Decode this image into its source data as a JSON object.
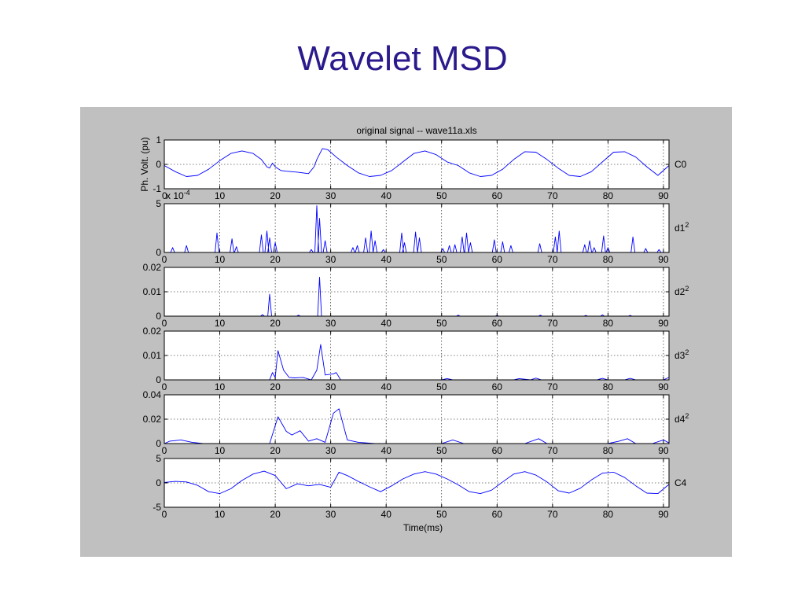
{
  "slide": {
    "title": "Wavelet MSD"
  },
  "figure": {
    "title": "original signal -- wave11a.xls",
    "xlabel": "Time(ms)",
    "ylabel_top": "Ph. Volt. (pu)",
    "exponent_label": "x 10",
    "exponent_power": "-4"
  },
  "colors": {
    "panel_bg": "#c0c0c0",
    "axes_bg": "#ffffff",
    "signal": "#0000ff",
    "title": "#2a1a8c"
  },
  "chart_data": [
    {
      "type": "line",
      "name": "C0",
      "label": "C0",
      "sup": "",
      "xlim": [
        0,
        91
      ],
      "ylim": [
        -1,
        1
      ],
      "yticks": [
        -1,
        0,
        1
      ],
      "ytick_labels": [
        "-1",
        "0",
        "1"
      ],
      "xticks": [
        0,
        10,
        20,
        30,
        40,
        50,
        60,
        70,
        80,
        90
      ],
      "grid": true,
      "x": [
        0,
        2,
        4,
        6,
        8,
        10,
        12,
        14,
        16,
        17.5,
        18.5,
        19,
        19.5,
        20,
        21,
        22,
        24,
        26,
        27,
        27.5,
        28.5,
        29.5,
        31,
        33,
        35,
        37,
        39,
        41,
        43,
        45,
        47,
        49,
        51,
        53,
        55,
        57,
        59,
        61,
        63,
        65,
        67,
        69,
        71,
        73,
        75,
        77,
        79,
        81,
        83,
        85,
        87,
        89,
        91
      ],
      "y": [
        -0.05,
        -0.3,
        -0.5,
        -0.45,
        -0.2,
        0.15,
        0.45,
        0.55,
        0.45,
        0.2,
        -0.1,
        -0.15,
        0.05,
        -0.1,
        -0.25,
        -0.28,
        -0.32,
        -0.38,
        -0.1,
        0.2,
        0.65,
        0.6,
        0.3,
        -0.05,
        -0.35,
        -0.5,
        -0.45,
        -0.25,
        0.1,
        0.45,
        0.55,
        0.4,
        0.1,
        -0.05,
        -0.35,
        -0.5,
        -0.45,
        -0.2,
        0.2,
        0.52,
        0.5,
        0.2,
        -0.15,
        -0.45,
        -0.5,
        -0.3,
        0.1,
        0.5,
        0.52,
        0.3,
        -0.1,
        -0.45,
        -0.05
      ]
    },
    {
      "type": "line",
      "name": "d1",
      "label": "d1",
      "sup": "2",
      "xlim": [
        0,
        91
      ],
      "ylim": [
        0,
        5
      ],
      "yticks": [
        0,
        5
      ],
      "ytick_labels": [
        "0",
        "5"
      ],
      "xticks": [
        0,
        10,
        20,
        30,
        40,
        50,
        60,
        70,
        80,
        90
      ],
      "grid": true,
      "spikes": [
        [
          1.5,
          0.5
        ],
        [
          4,
          0.7
        ],
        [
          9.5,
          2
        ],
        [
          12.2,
          1.4
        ],
        [
          13,
          0.6
        ],
        [
          17.5,
          1.8
        ],
        [
          18.5,
          2.2
        ],
        [
          19,
          1.5
        ],
        [
          20,
          1
        ],
        [
          26.5,
          0.3
        ],
        [
          27.5,
          4.8
        ],
        [
          28,
          3.5
        ],
        [
          29,
          1.2
        ],
        [
          34,
          0.5
        ],
        [
          34.8,
          0.7
        ],
        [
          36.3,
          1.5
        ],
        [
          37.3,
          2.2
        ],
        [
          38,
          1.2
        ],
        [
          39.5,
          0.3
        ],
        [
          42.8,
          2
        ],
        [
          43.3,
          1
        ],
        [
          45.3,
          2.1
        ],
        [
          46,
          1.5
        ],
        [
          50.2,
          0.4
        ],
        [
          51.4,
          0.7
        ],
        [
          52.4,
          0.8
        ],
        [
          53.7,
          1.6
        ],
        [
          54.5,
          2
        ],
        [
          55.2,
          1
        ],
        [
          59.5,
          1.3
        ],
        [
          61,
          1.1
        ],
        [
          62.5,
          0.7
        ],
        [
          67.7,
          0.9
        ],
        [
          70.5,
          1.6
        ],
        [
          71.2,
          2.2
        ],
        [
          75.8,
          0.8
        ],
        [
          76.7,
          1.2
        ],
        [
          77.5,
          0.5
        ],
        [
          79.2,
          1.7
        ],
        [
          80,
          0.5
        ],
        [
          84.5,
          1.6
        ],
        [
          86.8,
          0.4
        ],
        [
          89.2,
          0.3
        ]
      ]
    },
    {
      "type": "line",
      "name": "d2",
      "label": "d2",
      "sup": "2",
      "xlim": [
        0,
        91
      ],
      "ylim": [
        0,
        0.02
      ],
      "yticks": [
        0,
        0.01,
        0.02
      ],
      "ytick_labels": [
        "0",
        "0.01",
        "0.02"
      ],
      "xticks": [
        0,
        10,
        20,
        30,
        40,
        50,
        60,
        70,
        80,
        90
      ],
      "grid": true,
      "spikes": [
        [
          19,
          0.009
        ],
        [
          28,
          0.016
        ],
        [
          17.7,
          0.0006
        ],
        [
          24.2,
          0.0004
        ],
        [
          53,
          0.0004
        ],
        [
          60,
          0.0003
        ],
        [
          67.8,
          0.0004
        ],
        [
          76,
          0.0003
        ],
        [
          79,
          0.0005
        ],
        [
          84,
          0.0003
        ]
      ]
    },
    {
      "type": "line",
      "name": "d3",
      "label": "d3",
      "sup": "2",
      "xlim": [
        0,
        91
      ],
      "ylim": [
        0,
        0.02
      ],
      "yticks": [
        0,
        0.01,
        0.02
      ],
      "ytick_labels": [
        "0",
        "0.01",
        "0.02"
      ],
      "xticks": [
        0,
        10,
        20,
        30,
        40,
        50,
        60,
        70,
        80,
        90
      ],
      "grid": true,
      "x": [
        0,
        17,
        19,
        19.5,
        20,
        20.5,
        21.5,
        22.5,
        23.5,
        25,
        26.5,
        27.5,
        28.2,
        29,
        30.5,
        31,
        31.8,
        33,
        40,
        50,
        51,
        52,
        63,
        64,
        66,
        67,
        68,
        70,
        78,
        79,
        80,
        83,
        84,
        85,
        90,
        91
      ],
      "y": [
        0,
        0,
        0,
        0.003,
        0.001,
        0.012,
        0.004,
        0.001,
        0.0008,
        0.001,
        0,
        0.004,
        0.0145,
        0.002,
        0.0025,
        0.003,
        0,
        0,
        0,
        0,
        0.0005,
        0,
        0,
        0.0005,
        0,
        0.0007,
        0,
        0,
        0,
        0.0006,
        0,
        0,
        0.0006,
        0,
        0,
        0.001
      ]
    },
    {
      "type": "line",
      "name": "d4",
      "label": "d4",
      "sup": "2",
      "xlim": [
        0,
        91
      ],
      "ylim": [
        0,
        0.04
      ],
      "yticks": [
        0,
        0.02,
        0.04
      ],
      "ytick_labels": [
        "0",
        "0.02",
        "0.04"
      ],
      "xticks": [
        0,
        10,
        20,
        30,
        40,
        50,
        60,
        70,
        80,
        90
      ],
      "grid": true,
      "x": [
        0,
        1,
        3,
        5,
        7,
        15,
        19,
        20.5,
        22,
        23,
        24.5,
        26,
        27.5,
        29,
        30.5,
        31.5,
        33,
        35,
        38,
        45,
        50,
        52,
        54,
        60,
        65,
        67.5,
        69,
        75,
        80,
        82,
        83.5,
        85,
        88,
        90,
        91
      ],
      "y": [
        0,
        0.002,
        0.003,
        0.001,
        0,
        0,
        0,
        0.022,
        0.01,
        0.007,
        0.0105,
        0.002,
        0.004,
        0.001,
        0.025,
        0.0285,
        0.003,
        0.001,
        0,
        0,
        0,
        0.003,
        0,
        0,
        0,
        0.004,
        0,
        0,
        0,
        0.002,
        0.004,
        0,
        0,
        0.003,
        0.0005
      ]
    },
    {
      "type": "line",
      "name": "C4",
      "label": "C4",
      "sup": "",
      "xlim": [
        0,
        91
      ],
      "ylim": [
        -5,
        5
      ],
      "yticks": [
        -5,
        0,
        5
      ],
      "ytick_labels": [
        "-5",
        "0",
        "5"
      ],
      "xticks": [
        0,
        10,
        20,
        30,
        40,
        50,
        60,
        70,
        80,
        90
      ],
      "grid": true,
      "x": [
        0,
        2,
        4,
        6,
        8,
        10,
        12,
        14,
        16,
        18,
        20,
        22,
        24,
        26,
        28,
        30,
        31.5,
        33,
        35,
        37,
        39,
        41,
        43,
        45,
        47,
        49,
        51,
        53,
        55,
        57,
        59,
        61,
        63,
        65,
        67,
        69,
        71,
        73,
        75,
        77,
        79,
        81,
        83,
        85,
        87,
        89,
        91
      ],
      "y": [
        0.1,
        0.3,
        0.2,
        -0.5,
        -1.8,
        -2.2,
        -1.2,
        0.5,
        1.8,
        2.4,
        1.5,
        -1.2,
        -0.2,
        -0.6,
        -0.3,
        -0.9,
        2.2,
        1.5,
        0.3,
        -0.8,
        -1.8,
        -0.6,
        0.8,
        1.8,
        2.3,
        1.8,
        0.8,
        -0.4,
        -1.8,
        -2.2,
        -1.5,
        0.2,
        1.8,
        2.3,
        1.6,
        0.2,
        -1.6,
        -2.1,
        -1.1,
        0.6,
        2,
        2.2,
        1.1,
        -0.6,
        -2.1,
        -2.2,
        -0.3
      ]
    }
  ]
}
